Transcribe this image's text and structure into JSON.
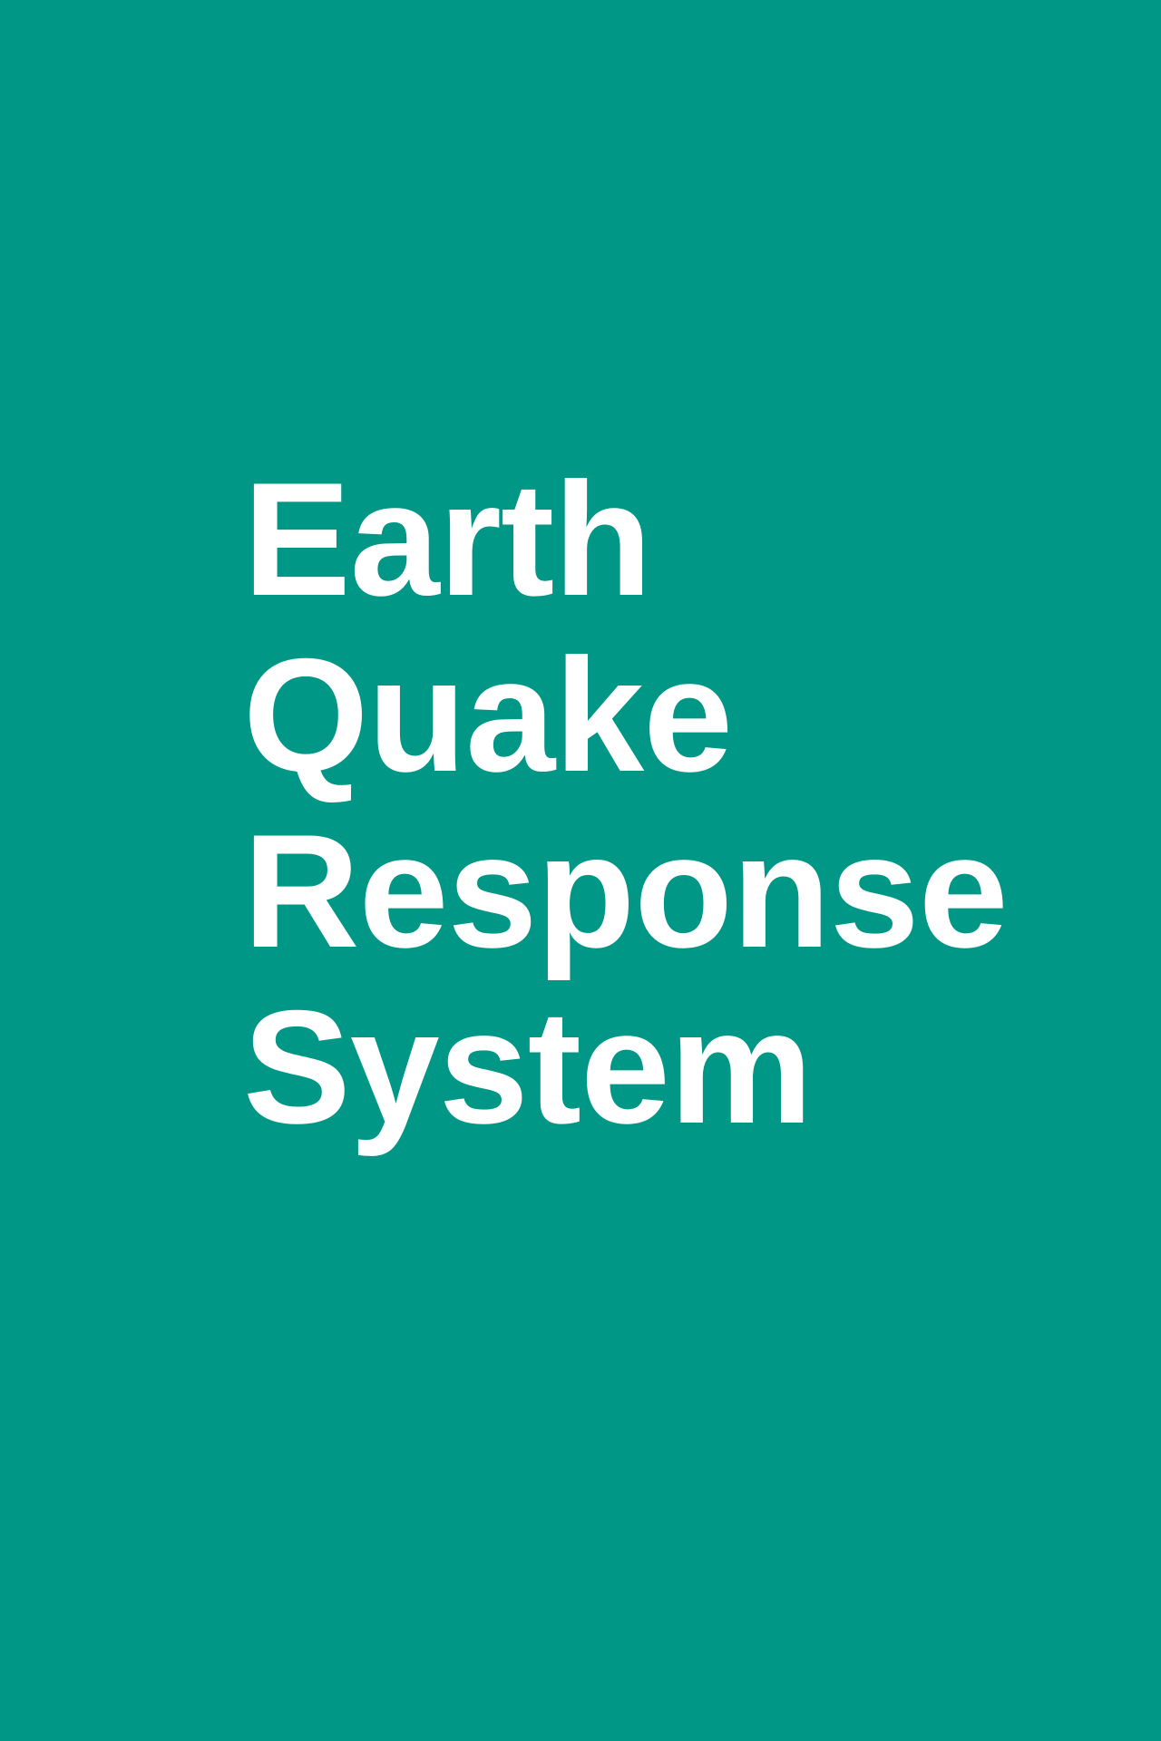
{
  "theme": {
    "background_color": "#009787",
    "text_color": "#ffffff"
  },
  "splash": {
    "title_lines": [
      "Earth",
      "Quake",
      "Response",
      "System"
    ]
  }
}
